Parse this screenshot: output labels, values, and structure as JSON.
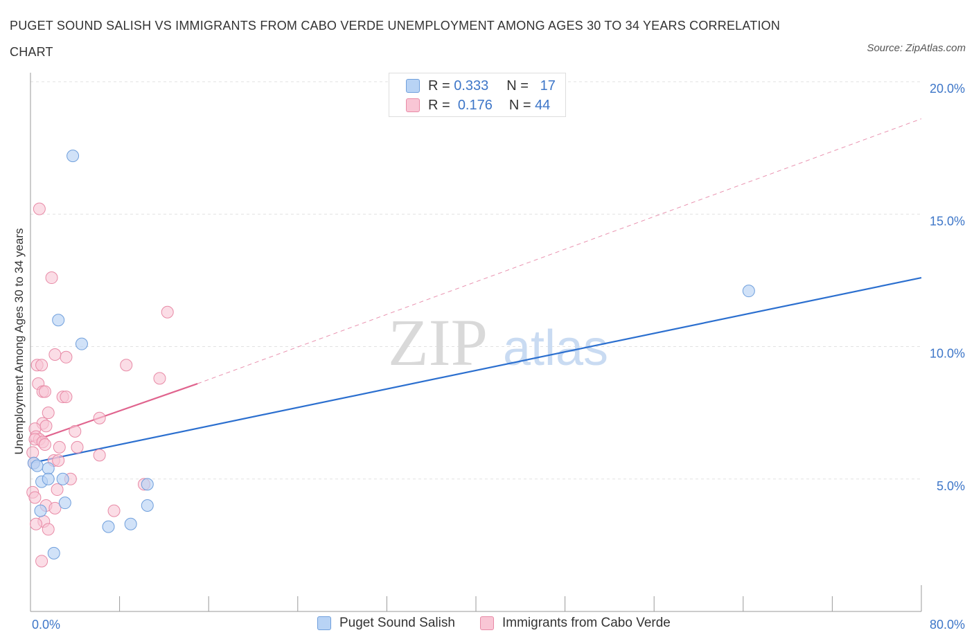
{
  "title": "PUGET SOUND SALISH VS IMMIGRANTS FROM CABO VERDE UNEMPLOYMENT AMONG AGES 30 TO 34 YEARS CORRELATION CHART",
  "source": "Source: ZipAtlas.com",
  "watermark": {
    "zip": "ZIP",
    "atlas": "atlas"
  },
  "legend": {
    "r_label": "R =",
    "n_label": "N =",
    "series1": {
      "r": "0.333",
      "n": "17"
    },
    "series2": {
      "r": "0.176",
      "n": "44"
    }
  },
  "colors": {
    "blue_fill": "#b8d3f5",
    "blue_stroke": "#6f9fdc",
    "blue_line": "#2b6fcf",
    "pink_fill": "#f9c6d5",
    "pink_stroke": "#e88aa6",
    "pink_line": "#e0648e",
    "tick_text": "#3d76c8"
  },
  "chart_data": {
    "type": "scatter",
    "title": "PUGET SOUND SALISH VS IMMIGRANTS FROM CABO VERDE UNEMPLOYMENT AMONG AGES 30 TO 34 YEARS CORRELATION CHART",
    "xlabel": "",
    "ylabel": "Unemployment Among Ages 30 to 34 years",
    "xlim": [
      0,
      80
    ],
    "ylim": [
      0,
      20
    ],
    "x_tick_labels": [
      "0.0%",
      "80.0%"
    ],
    "y_ticks": [
      5,
      10,
      15,
      20
    ],
    "y_tick_labels": [
      "5.0%",
      "10.0%",
      "15.0%",
      "20.0%"
    ],
    "series": [
      {
        "name": "Puget Sound Salish",
        "r": 0.333,
        "n": 17,
        "points": [
          [
            3.8,
            17.2
          ],
          [
            2.5,
            11.0
          ],
          [
            4.6,
            10.1
          ],
          [
            0.3,
            5.6
          ],
          [
            0.6,
            5.5
          ],
          [
            1.0,
            4.9
          ],
          [
            1.6,
            5.4
          ],
          [
            2.9,
            5.0
          ],
          [
            1.6,
            5.0
          ],
          [
            0.9,
            3.8
          ],
          [
            3.1,
            4.1
          ],
          [
            10.5,
            4.8
          ],
          [
            7.0,
            3.2
          ],
          [
            9.0,
            3.3
          ],
          [
            10.5,
            4.0
          ],
          [
            2.1,
            2.2
          ],
          [
            64.5,
            12.1
          ]
        ],
        "trend": [
          [
            0,
            5.6
          ],
          [
            80,
            12.6
          ]
        ]
      },
      {
        "name": "Immigrants from Cabo Verde",
        "r": 0.176,
        "n": 44,
        "points": [
          [
            0.8,
            15.2
          ],
          [
            1.9,
            12.6
          ],
          [
            12.3,
            11.3
          ],
          [
            0.6,
            9.3
          ],
          [
            1.0,
            9.3
          ],
          [
            3.2,
            9.6
          ],
          [
            2.2,
            9.7
          ],
          [
            8.6,
            9.3
          ],
          [
            11.6,
            8.8
          ],
          [
            0.7,
            8.6
          ],
          [
            1.1,
            8.3
          ],
          [
            1.3,
            8.3
          ],
          [
            2.9,
            8.1
          ],
          [
            3.2,
            8.1
          ],
          [
            6.2,
            7.3
          ],
          [
            1.6,
            7.5
          ],
          [
            1.1,
            7.1
          ],
          [
            1.4,
            7.0
          ],
          [
            0.4,
            6.9
          ],
          [
            4.0,
            6.8
          ],
          [
            0.5,
            6.6
          ],
          [
            0.8,
            6.5
          ],
          [
            0.4,
            6.5
          ],
          [
            1.1,
            6.4
          ],
          [
            1.3,
            6.3
          ],
          [
            2.6,
            6.2
          ],
          [
            4.2,
            6.2
          ],
          [
            0.2,
            6.0
          ],
          [
            6.2,
            5.9
          ],
          [
            2.1,
            5.7
          ],
          [
            2.5,
            5.7
          ],
          [
            0.3,
            5.6
          ],
          [
            3.6,
            5.0
          ],
          [
            10.2,
            4.8
          ],
          [
            2.4,
            4.6
          ],
          [
            0.2,
            4.5
          ],
          [
            0.4,
            4.3
          ],
          [
            1.4,
            4.0
          ],
          [
            2.2,
            3.9
          ],
          [
            7.5,
            3.8
          ],
          [
            1.2,
            3.4
          ],
          [
            0.5,
            3.3
          ],
          [
            1.6,
            3.1
          ],
          [
            1.0,
            1.9
          ]
        ],
        "trend_solid": [
          [
            0,
            6.4
          ],
          [
            15,
            8.6
          ]
        ],
        "trend_dashed": [
          [
            15,
            8.6
          ],
          [
            80,
            18.6
          ]
        ]
      }
    ]
  },
  "bottom_legend": {
    "series1": "Puget Sound Salish",
    "series2": "Immigrants from Cabo Verde"
  }
}
